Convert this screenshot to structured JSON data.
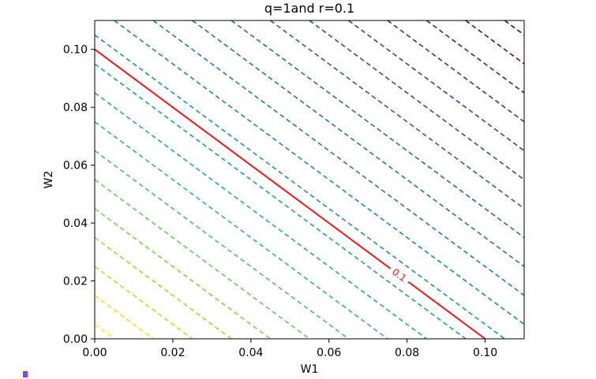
{
  "chart_data": {
    "type": "contour",
    "title": "q=1and r=0.1",
    "xlabel": "W1",
    "ylabel": "W2",
    "xlim": [
      0,
      0.11
    ],
    "ylim": [
      0,
      0.11
    ],
    "x_ticks": [
      0.0,
      0.02,
      0.04,
      0.06,
      0.08,
      0.1
    ],
    "y_ticks": [
      0.0,
      0.02,
      0.04,
      0.06,
      0.08,
      0.1
    ],
    "x_tick_labels": [
      "0.00",
      "0.02",
      "0.04",
      "0.06",
      "0.08",
      "0.10"
    ],
    "y_tick_labels": [
      "0.00",
      "0.02",
      "0.04",
      "0.06",
      "0.08",
      "0.10"
    ],
    "function": "W1 + W2",
    "contour_levels": [
      0.005,
      0.015,
      0.025,
      0.035,
      0.045,
      0.055,
      0.065,
      0.075,
      0.085,
      0.095,
      0.105,
      0.115,
      0.125,
      0.135,
      0.145,
      0.155,
      0.165,
      0.175,
      0.185,
      0.195,
      0.205,
      0.215
    ],
    "contour_style": "dashed",
    "colormap": "viridis_r",
    "highlight_contour": {
      "level": 0.1,
      "label": "0.1",
      "color": "#e41a1c",
      "style": "solid"
    }
  },
  "colors": {
    "highlight": "#e41a1c",
    "viridis": [
      "#fde725",
      "#b5de2b",
      "#6ece58",
      "#35b779",
      "#1f9e89",
      "#26828e",
      "#31688e",
      "#3e4989",
      "#482878",
      "#440154"
    ]
  },
  "icons": {
    "corner": "small-purple-marker-icon"
  }
}
